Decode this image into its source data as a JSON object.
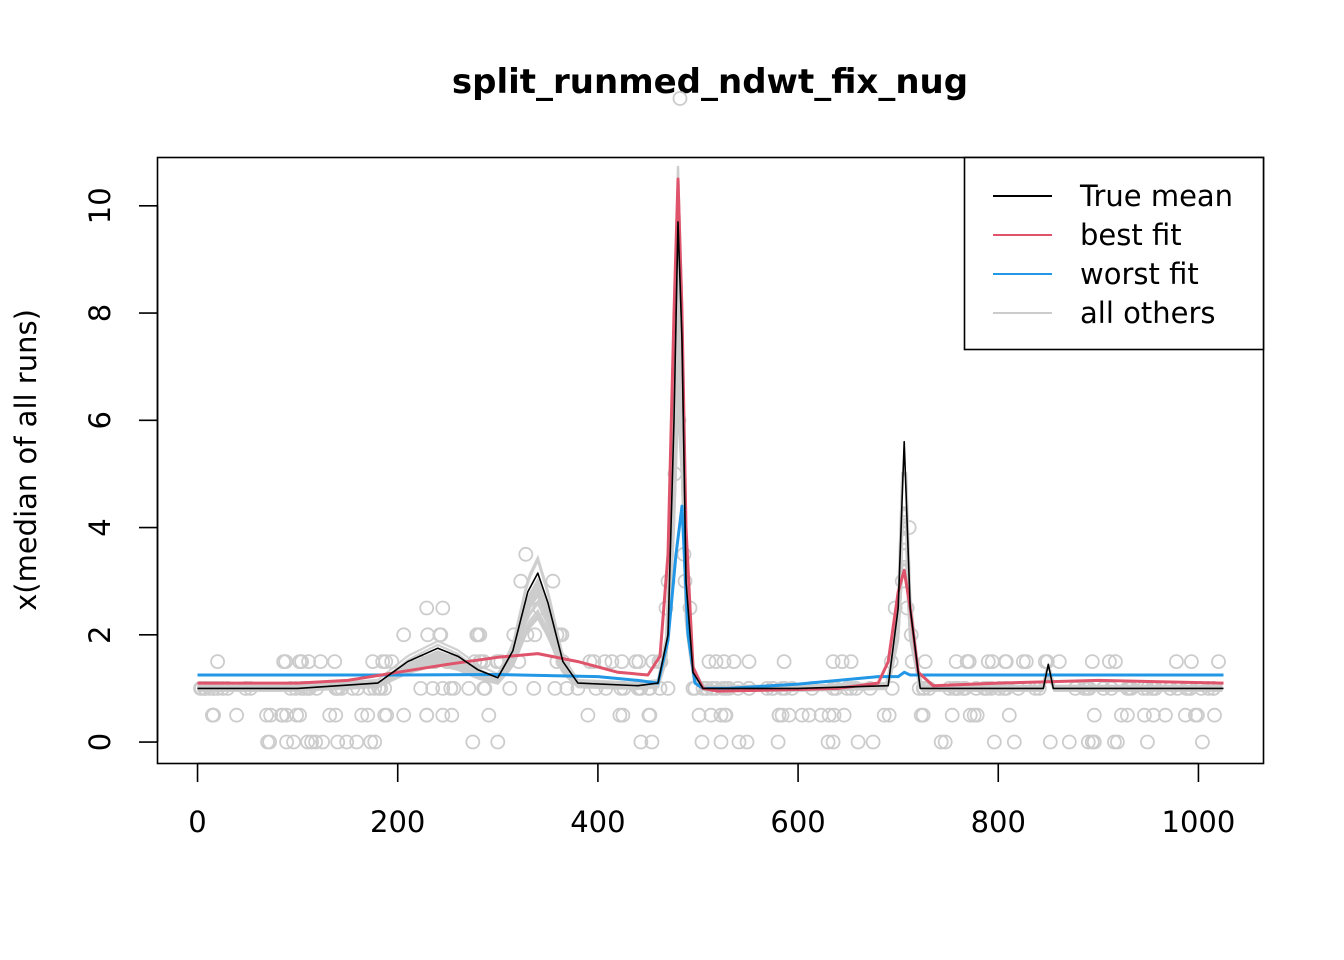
{
  "chart_data": {
    "type": "line",
    "title": "split_runmed_ndwt_fix_nug",
    "xlabel": "",
    "ylabel": "x(median of all runs)",
    "xlim": [
      -40,
      1065
    ],
    "ylim": [
      -0.4,
      10.9
    ],
    "x_ticks": [
      0,
      200,
      400,
      600,
      800,
      1000
    ],
    "x_tick_labels": [
      "0",
      "200",
      "400",
      "600",
      "800",
      "1000"
    ],
    "y_ticks": [
      0,
      2,
      4,
      6,
      8,
      10
    ],
    "y_tick_labels": [
      "0",
      "2",
      "4",
      "6",
      "8",
      "10"
    ],
    "grid": false,
    "legend": {
      "position": "top-right",
      "entries": [
        {
          "label": "True mean",
          "color": "#000000"
        },
        {
          "label": "best fit",
          "color": "#DF536B"
        },
        {
          "label": "worst fit",
          "color": "#2297E6"
        },
        {
          "label": "all others",
          "color": "#CCCCCC"
        }
      ]
    },
    "series": [
      {
        "name": "True mean",
        "color": "#000000",
        "x": [
          0,
          100,
          180,
          210,
          240,
          260,
          280,
          300,
          315,
          330,
          340,
          350,
          365,
          380,
          440,
          460,
          470,
          476,
          480,
          484,
          488,
          495,
          505,
          600,
          690,
          700,
          706,
          712,
          722,
          800,
          845,
          850,
          855,
          900,
          1025
        ],
        "values": [
          1.0,
          1.0,
          1.1,
          1.5,
          1.75,
          1.6,
          1.35,
          1.2,
          1.7,
          2.8,
          3.15,
          2.6,
          1.5,
          1.1,
          1.05,
          1.1,
          2.0,
          6.0,
          9.7,
          7.5,
          3.0,
          1.3,
          1.0,
          1.0,
          1.05,
          2.5,
          5.6,
          2.5,
          1.0,
          1.0,
          1.0,
          1.45,
          1.0,
          1.0,
          1.0
        ]
      },
      {
        "name": "best fit",
        "color": "#DF536B",
        "x": [
          0,
          100,
          150,
          200,
          250,
          300,
          340,
          380,
          420,
          450,
          462,
          470,
          476,
          480,
          484,
          488,
          495,
          505,
          520,
          600,
          640,
          680,
          690,
          700,
          706,
          712,
          720,
          735,
          800,
          900,
          1025
        ],
        "values": [
          1.1,
          1.1,
          1.15,
          1.3,
          1.45,
          1.58,
          1.65,
          1.5,
          1.3,
          1.25,
          1.6,
          3.5,
          8.0,
          10.5,
          8.0,
          4.0,
          1.4,
          1.0,
          0.95,
          0.98,
          1.0,
          1.1,
          1.5,
          2.8,
          3.2,
          2.5,
          1.3,
          1.05,
          1.1,
          1.15,
          1.1
        ]
      },
      {
        "name": "worst fit",
        "color": "#2297E6",
        "x": [
          0,
          200,
          300,
          400,
          440,
          460,
          470,
          478,
          484,
          490,
          497,
          505,
          530,
          600,
          680,
          700,
          706,
          712,
          750,
          1025
        ],
        "values": [
          1.25,
          1.25,
          1.26,
          1.22,
          1.15,
          1.1,
          1.9,
          3.5,
          4.4,
          2.0,
          1.1,
          1.0,
          1.0,
          1.08,
          1.22,
          1.22,
          1.3,
          1.25,
          1.25,
          1.25
        ]
      }
    ]
  }
}
